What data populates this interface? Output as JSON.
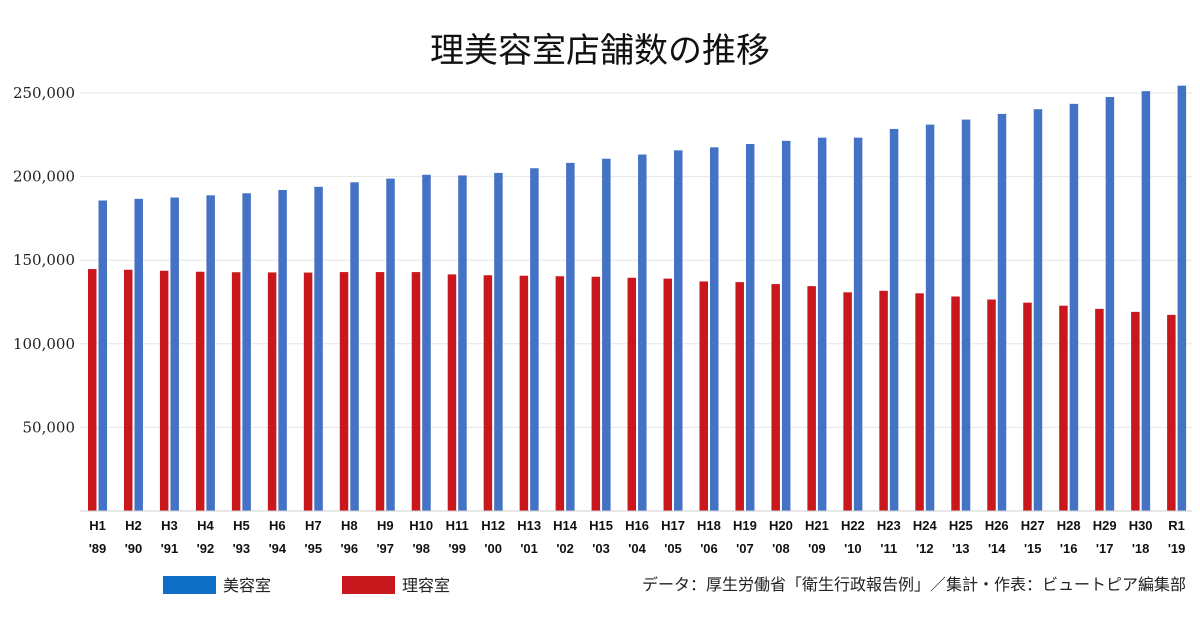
{
  "chart_data": {
    "type": "bar",
    "title": "理美容室店舗数の推移",
    "categories": [
      [
        "H1",
        "'89"
      ],
      [
        "H2",
        "'90"
      ],
      [
        "H3",
        "'91"
      ],
      [
        "H4",
        "'92"
      ],
      [
        "H5",
        "'93"
      ],
      [
        "H6",
        "'94"
      ],
      [
        "H7",
        "'95"
      ],
      [
        "H8",
        "'96"
      ],
      [
        "H9",
        "'97"
      ],
      [
        "H10",
        "'98"
      ],
      [
        "H11",
        "'99"
      ],
      [
        "H12",
        "'00"
      ],
      [
        "H13",
        "'01"
      ],
      [
        "H14",
        "'02"
      ],
      [
        "H15",
        "'03"
      ],
      [
        "H16",
        "'04"
      ],
      [
        "H17",
        "'05"
      ],
      [
        "H18",
        "'06"
      ],
      [
        "H19",
        "'07"
      ],
      [
        "H20",
        "'08"
      ],
      [
        "H21",
        "'09"
      ],
      [
        "H22",
        "'10"
      ],
      [
        "H23",
        "'11"
      ],
      [
        "H24",
        "'12"
      ],
      [
        "H25",
        "'13"
      ],
      [
        "H26",
        "'14"
      ],
      [
        "H27",
        "'15"
      ],
      [
        "H28",
        "'16"
      ],
      [
        "H29",
        "'17"
      ],
      [
        "H30",
        "'18"
      ],
      [
        "R1",
        "'19"
      ]
    ],
    "series": [
      {
        "name": "理容室",
        "color": "#c8181e",
        "values": [
          144700,
          144300,
          143700,
          143100,
          142800,
          142700,
          142600,
          142900,
          142900,
          142900,
          141500,
          141000,
          140700,
          140400,
          140100,
          139500,
          139000,
          137300,
          136900,
          135700,
          134500,
          130800,
          131700,
          130200,
          128300,
          126500,
          124600,
          122800,
          120900,
          119100,
          117300
        ]
      },
      {
        "name": "美容室",
        "color": "#4472c4",
        "values": [
          185700,
          186700,
          187500,
          188800,
          190000,
          192000,
          193900,
          196600,
          198800,
          201100,
          200700,
          202200,
          205000,
          208200,
          210700,
          213200,
          215700,
          217500,
          219500,
          221400,
          223300,
          223300,
          228500,
          231100,
          234100,
          237500,
          240300,
          243500,
          247600,
          251100,
          254400
        ]
      }
    ],
    "yticks": [
      "50,000",
      "100,000",
      "150,000",
      "200,000",
      "250,000"
    ],
    "ytick_values": [
      50000,
      100000,
      150000,
      200000,
      250000
    ],
    "ylim": [
      0,
      250000
    ],
    "legend": [
      {
        "label": "美容室",
        "color": "#0f6fc6"
      },
      {
        "label": "理容室",
        "color": "#c8181e"
      }
    ],
    "source": "データ：厚生労働省「衛生行政報告例」／集計・作表：ビュートピア編集部"
  }
}
